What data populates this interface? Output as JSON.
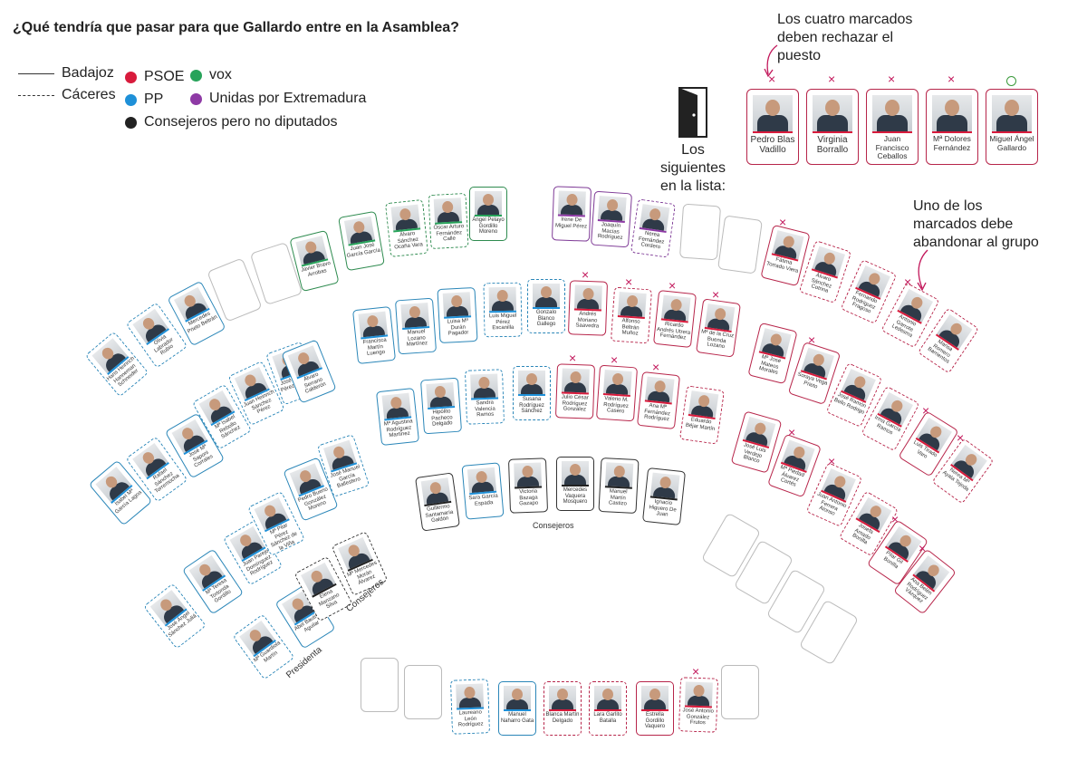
{
  "title": "¿Qué tendría que pasar para que Gallardo entre en la Asamblea?",
  "legend": {
    "badajoz": "Badajoz",
    "caceres": "Cáceres",
    "parties": [
      {
        "name": "PSOE",
        "color": "#d81b3c"
      },
      {
        "name": "PP",
        "color": "#1e90d8"
      },
      {
        "name": "Consejeros pero no diputados",
        "color": "#222222"
      },
      {
        "name": "vox",
        "color": "#27a35a"
      },
      {
        "name": "Unidas por Extremadura",
        "color": "#8e3aa5"
      }
    ]
  },
  "annotations": {
    "cuatro": "Los cuatro marcados deben rechazar el puesto",
    "siguientes": "Los siguientes en la lista:",
    "abandonar": "Uno de los marcados debe abandonar al grupo"
  },
  "next_list": [
    {
      "name": "Pedro Blas Vadillo",
      "mark": "×"
    },
    {
      "name": "Virginia Borrallo",
      "mark": "×"
    },
    {
      "name": "Juan Francisco Ceballos",
      "mark": "×"
    },
    {
      "name": "Mª Dolores Fernández",
      "mark": "×"
    },
    {
      "name": "Miguel Ángel Gallardo",
      "mark": "○"
    }
  ],
  "labels": {
    "consejeros": "Consejeros",
    "consejeros_b": "Consejeros",
    "presidenta": "Presidenta"
  },
  "seats": [
    {
      "name": "Hans Heinrich Hanneman Schneider",
      "party": "PP",
      "prov": "Cáceres"
    },
    {
      "name": "Olivia Labrador Rubio",
      "party": "PP",
      "prov": "Cáceres"
    },
    {
      "name": "Mercedes Prieto Beltrán",
      "party": "PP",
      "prov": "Badajoz"
    },
    {
      "name": "Javier Bravo Arrobas",
      "party": "vox",
      "prov": "Badajoz"
    },
    {
      "name": "Juan José García García",
      "party": "vox",
      "prov": "Badajoz"
    },
    {
      "name": "Álvaro Sánchez Ocaña Vara",
      "party": "vox",
      "prov": "Cáceres"
    },
    {
      "name": "Óscar Arturo Fernández Calle",
      "party": "vox",
      "prov": "Cáceres"
    },
    {
      "name": "Ángel Pelayo Gordillo Moreno",
      "party": "vox",
      "prov": "Badajoz"
    },
    {
      "name": "Irene De Miguel Pérez",
      "party": "UxE",
      "prov": "Badajoz"
    },
    {
      "name": "Joaquín Macías Rodríguez",
      "party": "UxE",
      "prov": "Badajoz"
    },
    {
      "name": "Nerea Fernández Cordero",
      "party": "UxE",
      "prov": "Cáceres"
    },
    {
      "name": "Fátima Torrado Viera",
      "party": "PSOE",
      "prov": "Badajoz"
    },
    {
      "name": "Álvaro Sánchez Cotrina",
      "party": "PSOE",
      "prov": "Cáceres"
    },
    {
      "name": "Fernando Rodríguez Fragoso",
      "party": "PSOE",
      "prov": "Cáceres"
    },
    {
      "name": "Antonio Garrote Ledesma",
      "party": "PSOE",
      "prov": "Cáceres"
    },
    {
      "name": "Marisa Romero Barrientos",
      "party": "PSOE",
      "prov": "Cáceres"
    },
    {
      "name": "Francisca Martín Luengo",
      "party": "PP",
      "prov": "Badajoz"
    },
    {
      "name": "Manuel Lozano Martínez",
      "party": "PP",
      "prov": "Badajoz"
    },
    {
      "name": "Luisa Mª Durán Pagador",
      "party": "PP",
      "prov": "Badajoz"
    },
    {
      "name": "Luis Miguel Pérez Escanilla",
      "party": "PP",
      "prov": "Cáceres"
    },
    {
      "name": "Gonzalo Blanco Gallego",
      "party": "PP",
      "prov": "Cáceres"
    },
    {
      "name": "Andrés Moriano Saavedra",
      "party": "PSOE",
      "prov": "Badajoz"
    },
    {
      "name": "Alfonso Beltrán Muñoz",
      "party": "PSOE",
      "prov": "Cáceres"
    },
    {
      "name": "Ricardo Andrés Utrera Fernández",
      "party": "PSOE",
      "prov": "Badajoz"
    },
    {
      "name": "Mª de la Cruz Buenda Lozano",
      "party": "PSOE",
      "prov": "Badajoz"
    },
    {
      "name": "Mª José Mateos Morales",
      "party": "PSOE",
      "prov": "Badajoz"
    },
    {
      "name": "Soraya Vega Prieto",
      "party": "PSOE",
      "prov": "Badajoz"
    },
    {
      "name": "José Ramón Bello Rodrigo",
      "party": "PSOE",
      "prov": "Cáceres"
    },
    {
      "name": "Irma García Ramos",
      "party": "PSOE",
      "prov": "Cáceres"
    },
    {
      "name": "Luis Tirado Varo",
      "party": "PSOE",
      "prov": "Badajoz"
    },
    {
      "name": "Nerea Mª Ayala Tejeda",
      "party": "PSOE",
      "prov": "Cáceres"
    },
    {
      "name": "Juan Heinrich Sánchez Pérez",
      "party": "PP",
      "prov": "Cáceres"
    },
    {
      "name": "Mª Isabel Rebollo Sánchez",
      "party": "PP",
      "prov": "Cáceres"
    },
    {
      "name": "José Alberto Pérez Álvarez",
      "party": "PP",
      "prov": "Cáceres"
    },
    {
      "name": "Álvaro Serrano Calderón",
      "party": "PP",
      "prov": "Badajoz"
    },
    {
      "name": "Isabel Mª García Lagoa",
      "party": "PP",
      "prov": "Badajoz"
    },
    {
      "name": "Rafael Sánchez Torremocha",
      "party": "PP",
      "prov": "Cáceres"
    },
    {
      "name": "José Mª Saponi Corrales",
      "party": "PP",
      "prov": "Badajoz"
    },
    {
      "name": "Mª Agustina Rodríguez Martínez",
      "party": "PP",
      "prov": "Badajoz"
    },
    {
      "name": "Hipólito Pacheco Delgado",
      "party": "PP",
      "prov": "Badajoz"
    },
    {
      "name": "Sandra Valencia Ramos",
      "party": "PP",
      "prov": "Cáceres"
    },
    {
      "name": "Susana Rodríguez Sánchez",
      "party": "PP",
      "prov": "Cáceres"
    },
    {
      "name": "Julio César Rodríguez González",
      "party": "PSOE",
      "prov": "Badajoz"
    },
    {
      "name": "Valerio M. Rodríguez Casero",
      "party": "PSOE",
      "prov": "Badajoz"
    },
    {
      "name": "Ana Mª Fernández Rodríguez",
      "party": "PSOE",
      "prov": "Badajoz"
    },
    {
      "name": "Eduardo Béjar Martín",
      "party": "PSOE",
      "prov": "Cáceres"
    },
    {
      "name": "José Luis Verdejo Blanco",
      "party": "PSOE",
      "prov": "Badajoz"
    },
    {
      "name": "Mª Piedad Álvarez Cortés",
      "party": "PSOE",
      "prov": "Badajoz"
    },
    {
      "name": "Juan Antonio Ferrera Alonso",
      "party": "PSOE",
      "prov": "Cáceres"
    },
    {
      "name": "Josefa Amado Bonilla",
      "party": "PSOE",
      "prov": "Cáceres"
    },
    {
      "name": "Pilar Gil Bonilla",
      "party": "PSOE",
      "prov": "Badajoz"
    },
    {
      "name": "Ana Belén Rodríguez Vázquez",
      "party": "PSOE",
      "prov": "Badajoz"
    },
    {
      "name": "José Ángel Sánchez Juliá",
      "party": "PP",
      "prov": "Cáceres"
    },
    {
      "name": "Mª Teresa Tortonda Gordillo",
      "party": "PP",
      "prov": "Badajoz"
    },
    {
      "name": "Juan Parejo Domínguez Rodríguez",
      "party": "PP",
      "prov": "Cáceres"
    },
    {
      "name": "Mª Pilar Pérez Sánchez de la Viña",
      "party": "PP",
      "prov": "Cáceres"
    },
    {
      "name": "Pedro Bueno González Moreno",
      "party": "PP",
      "prov": "Badajoz"
    },
    {
      "name": "José Manuel García Ballestero",
      "party": "PP",
      "prov": "Cáceres"
    },
    {
      "name": "Guillermo Santamaría Galdón",
      "party": "C",
      "prov": "Badajoz"
    },
    {
      "name": "Sara García Espada",
      "party": "PP",
      "prov": "Badajoz"
    },
    {
      "name": "Victoria Bazaga Gazapo",
      "party": "C",
      "prov": "Badajoz"
    },
    {
      "name": "Mercedes Vaquera Mosquero",
      "party": "C",
      "prov": "Badajoz"
    },
    {
      "name": "Manuel Martín Castizo",
      "party": "C",
      "prov": "Badajoz"
    },
    {
      "name": "Ignacio Higuero De Juan",
      "party": "C",
      "prov": "Badajoz"
    },
    {
      "name": "Mª Guardiola Martín",
      "party": "PP",
      "prov": "Cáceres"
    },
    {
      "name": "Abel Bautista Aguilar",
      "party": "PP",
      "prov": "Badajoz"
    },
    {
      "name": "Elena Manzano Silva",
      "party": "C",
      "prov": "Cáceres"
    },
    {
      "name": "Mª Mercedes Morán Álvarez",
      "party": "C",
      "prov": "Cáceres"
    },
    {
      "name": "Laureano León Rodríguez",
      "party": "PP",
      "prov": "Cáceres"
    },
    {
      "name": "Manuel Naharro Gata",
      "party": "PP",
      "prov": "Badajoz"
    },
    {
      "name": "Blanca Martín Delgado",
      "party": "PSOE",
      "prov": "Cáceres"
    },
    {
      "name": "Lara Garlito Batalla",
      "party": "PSOE",
      "prov": "Cáceres"
    },
    {
      "name": "Estrella Gordillo Vaquero",
      "party": "PSOE",
      "prov": "Badajoz"
    },
    {
      "name": "José Antonio González Frutos",
      "party": "PSOE",
      "prov": "Cáceres"
    }
  ],
  "marked": [
    11,
    14,
    21,
    22,
    23,
    24,
    26,
    29,
    30,
    42,
    43,
    44,
    47,
    48,
    50,
    51,
    73
  ]
}
